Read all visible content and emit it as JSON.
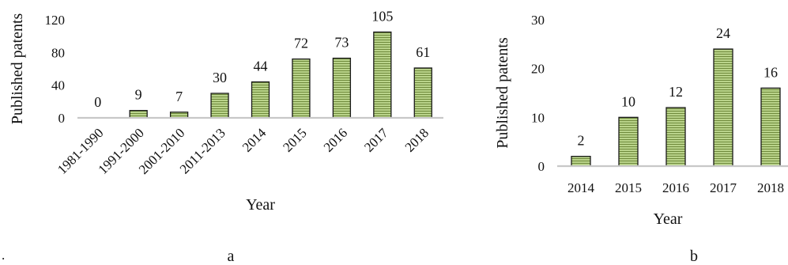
{
  "figure": {
    "marker": ".",
    "bar_fill": "#b9d38a",
    "stripe_color": "#6f8a3c",
    "axis_color": "#c8c8c8"
  },
  "chart_data": [
    {
      "type": "bar",
      "panel_label": "a",
      "ylabel": "Published patents",
      "xlabel": "Year",
      "categories": [
        "1981-1990",
        "1991-2000",
        "2001-2010",
        "2011-2013",
        "2014",
        "2015",
        "2016",
        "2017",
        "2018"
      ],
      "values": [
        0,
        9,
        7,
        30,
        44,
        72,
        73,
        105,
        61
      ],
      "data_labels": [
        "0",
        "9",
        "7",
        "30",
        "44",
        "72",
        "73",
        "105",
        "61"
      ],
      "ylim": [
        0,
        120
      ],
      "yticks": [
        0,
        40,
        80,
        120
      ],
      "ytick_labels": [
        "0",
        "40",
        "80",
        "120"
      ],
      "grid": false,
      "legend": "none"
    },
    {
      "type": "bar",
      "panel_label": "b",
      "ylabel": "Published patents",
      "xlabel": "Year",
      "categories": [
        "2014",
        "2015",
        "2016",
        "2017",
        "2018"
      ],
      "values": [
        2,
        10,
        12,
        24,
        16
      ],
      "data_labels": [
        "2",
        "10",
        "12",
        "24",
        "16"
      ],
      "ylim": [
        0,
        30
      ],
      "yticks": [
        0,
        10,
        20,
        30
      ],
      "ytick_labels": [
        "0",
        "10",
        "20",
        "30"
      ],
      "grid": false,
      "legend": "none"
    }
  ]
}
